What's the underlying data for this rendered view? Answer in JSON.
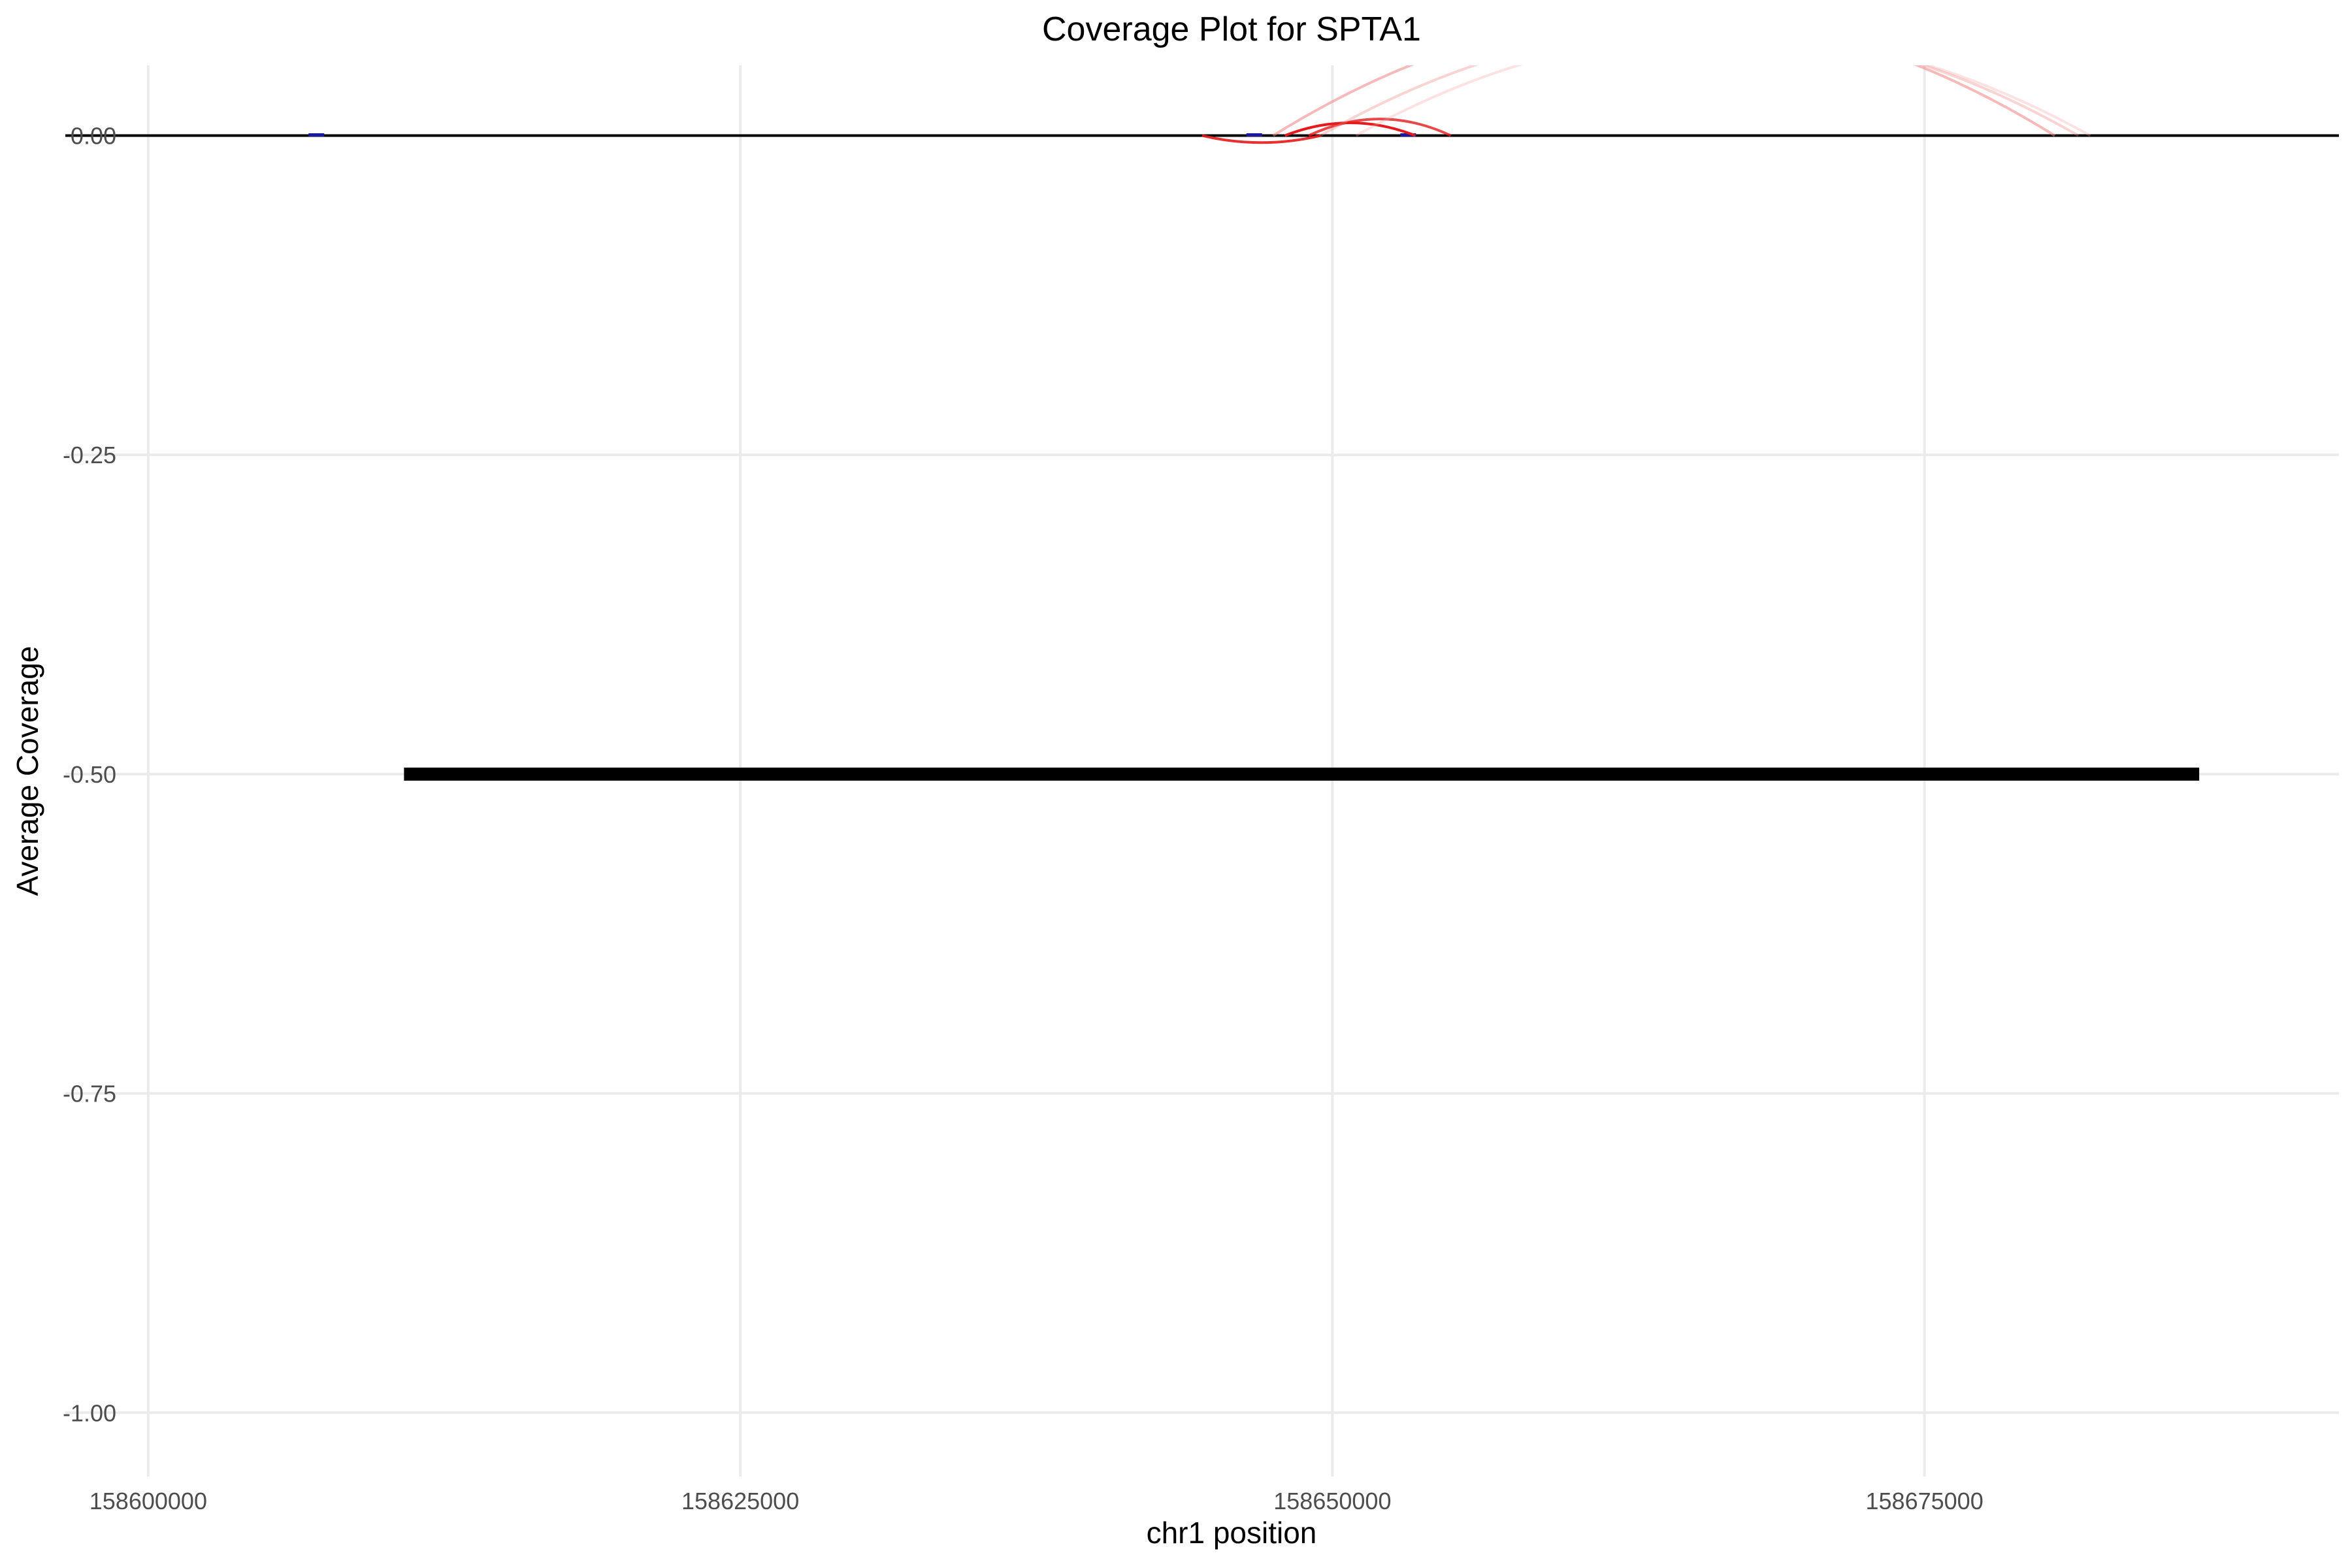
{
  "chart_data": {
    "type": "line",
    "title": "Coverage Plot for SPTA1",
    "xlabel": "chr1 position",
    "ylabel": "Average Coverage",
    "xlim": [
      158596500,
      158692500
    ],
    "ylim": [
      -1.05,
      0.055
    ],
    "x_ticks": [
      158600000,
      158625000,
      158650000,
      158675000
    ],
    "y_ticks": [
      0.0,
      -0.25,
      -0.5,
      -0.75,
      -1.0
    ],
    "x_tick_labels": [
      "158600000",
      "158625000",
      "158650000",
      "158675000"
    ],
    "y_tick_labels": [
      "0.00",
      "-0.25",
      "-0.50",
      "-0.75",
      "-1.00"
    ],
    "grid": true,
    "legend": "none",
    "baseline": {
      "y": 0,
      "color": "#000000"
    },
    "gene_body": {
      "start": 158610800,
      "end": 158686600,
      "y": -0.5,
      "color": "#000000"
    },
    "coverage_marks": [
      {
        "x": 158607100,
        "color": "#1a1aa0"
      },
      {
        "x": 158646700,
        "color": "#1a1aa0"
      },
      {
        "x": 158653200,
        "color": "#1a1aa0"
      }
    ],
    "junctions": [
      {
        "start": 158644500,
        "end": 158649500,
        "height": -0.0055,
        "color": "#e41a1c",
        "opacity": 0.9
      },
      {
        "start": 158648000,
        "end": 158653500,
        "height": 0.01,
        "color": "#e41a1c",
        "opacity": 1.0
      },
      {
        "start": 158649000,
        "end": 158655000,
        "height": 0.013,
        "color": "#e41a1c",
        "opacity": 0.8
      },
      {
        "start": 158647500,
        "end": 158680500,
        "height": 0.095,
        "color": "#f08080",
        "opacity": 0.55
      },
      {
        "start": 158649500,
        "end": 158681500,
        "height": 0.085,
        "color": "#f08080",
        "opacity": 0.35
      },
      {
        "start": 158651000,
        "end": 158682000,
        "height": 0.08,
        "color": "#f4a0a0",
        "opacity": 0.3
      }
    ],
    "colors": {
      "junction": "#e41a1c",
      "coverage": "#1a1aa0",
      "grid": "#ebebeb"
    }
  }
}
